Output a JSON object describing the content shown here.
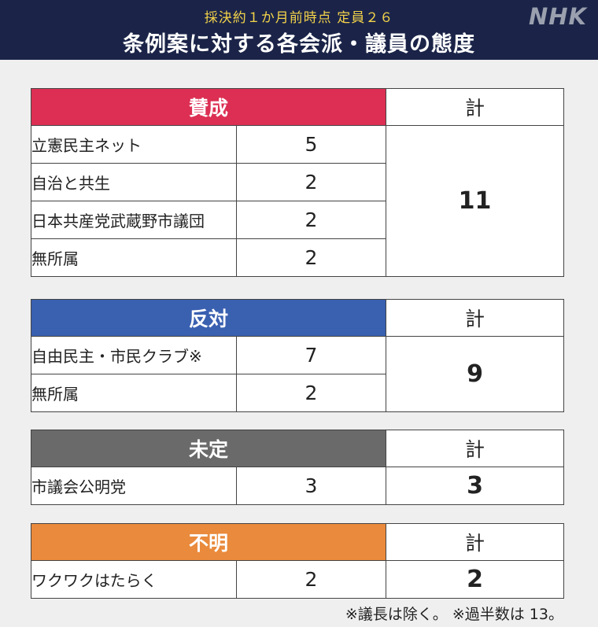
{
  "header": {
    "subtitle": "採決約１か月前時点 定員２６",
    "title": "条例案に対する各会派・議員の態度",
    "logo": "NHK"
  },
  "colors": {
    "header_bg": "#1b2448",
    "support": "#dc2f53",
    "oppose": "#3a60b0",
    "undecided": "#6a6a6a",
    "unknown": "#e98a3c"
  },
  "groups": [
    {
      "label": "賛成",
      "total_label": "計",
      "total": "11",
      "rows": [
        {
          "name": "立憲民主ネット",
          "count": "5"
        },
        {
          "name": "自治と共生",
          "count": "2"
        },
        {
          "name": "日本共産党武蔵野市議団",
          "count": "2"
        },
        {
          "name": "無所属",
          "count": "2"
        }
      ]
    },
    {
      "label": "反対",
      "total_label": "計",
      "total": "9",
      "rows": [
        {
          "name": "自由民主・市民クラブ※",
          "count": "7"
        },
        {
          "name": "無所属",
          "count": "2"
        }
      ]
    },
    {
      "label": "未定",
      "total_label": "計",
      "total": "3",
      "rows": [
        {
          "name": "市議会公明党",
          "count": "3"
        }
      ]
    },
    {
      "label": "不明",
      "total_label": "計",
      "total": "2",
      "rows": [
        {
          "name": "ワクワクはたらく",
          "count": "2"
        }
      ]
    }
  ],
  "note": "※議長は除く。 ※過半数は 13。"
}
